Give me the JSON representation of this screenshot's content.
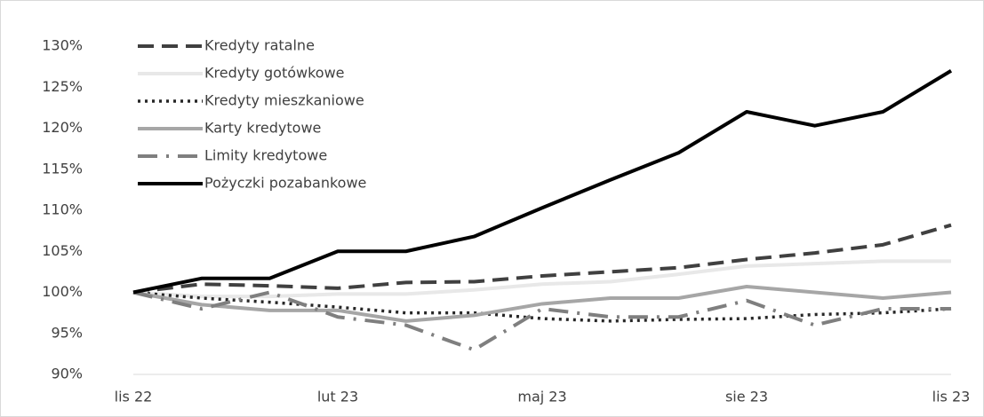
{
  "chart_data": {
    "type": "line",
    "categories": [
      "lis 22",
      null,
      null,
      "lut 23",
      null,
      null,
      "maj 23",
      null,
      null,
      "sie 23",
      null,
      null,
      "lis 23"
    ],
    "ylim": [
      90,
      130
    ],
    "yticks": [
      {
        "value": 90,
        "label": "90%"
      },
      {
        "value": 95,
        "label": "95%"
      },
      {
        "value": 100,
        "label": "100%"
      },
      {
        "value": 105,
        "label": "105%"
      },
      {
        "value": 110,
        "label": "110%"
      },
      {
        "value": 115,
        "label": "115%"
      },
      {
        "value": 120,
        "label": "120%"
      },
      {
        "value": 125,
        "label": "125%"
      },
      {
        "value": 130,
        "label": "130%"
      }
    ],
    "legend": "upper left",
    "series": [
      {
        "name": "Kredyty ratalne",
        "color": "#404040",
        "dash": "dashed",
        "values": [
          100,
          101,
          100.8,
          100.5,
          101.2,
          101.3,
          102,
          102.5,
          103,
          104,
          104.8,
          105.8,
          108.2
        ]
      },
      {
        "name": "Kredyty gotówkowe",
        "color": "#e8e8e8",
        "dash": "solid",
        "values": [
          100,
          99.5,
          99.5,
          99.8,
          99.8,
          100.3,
          101,
          101.3,
          102.2,
          103.2,
          103.5,
          103.8,
          103.8
        ]
      },
      {
        "name": "Kredyty mieszkaniowe",
        "color": "#262626",
        "dash": "dotted",
        "values": [
          100,
          99.3,
          98.8,
          98.2,
          97.5,
          97.5,
          96.8,
          96.5,
          96.7,
          96.8,
          97.3,
          97.5,
          98
        ]
      },
      {
        "name": "Karty kredytowe",
        "color": "#a6a6a6",
        "dash": "solid",
        "values": [
          100,
          98.5,
          97.8,
          97.8,
          96.5,
          97.2,
          98.6,
          99.3,
          99.3,
          100.7,
          100,
          99.3,
          100
        ]
      },
      {
        "name": "Limity kredytowe",
        "color": "#7f7f7f",
        "dash": "dashdot",
        "values": [
          100,
          98,
          100,
          97,
          96,
          93,
          98,
          97,
          97,
          99,
          96,
          98,
          98
        ]
      },
      {
        "name": "Pożyczki pozabankowe",
        "color": "#000000",
        "dash": "solid",
        "values": [
          100,
          101.7,
          101.7,
          105,
          105,
          106.8,
          110.3,
          113.7,
          117,
          122,
          120.3,
          122,
          127
        ]
      }
    ]
  }
}
